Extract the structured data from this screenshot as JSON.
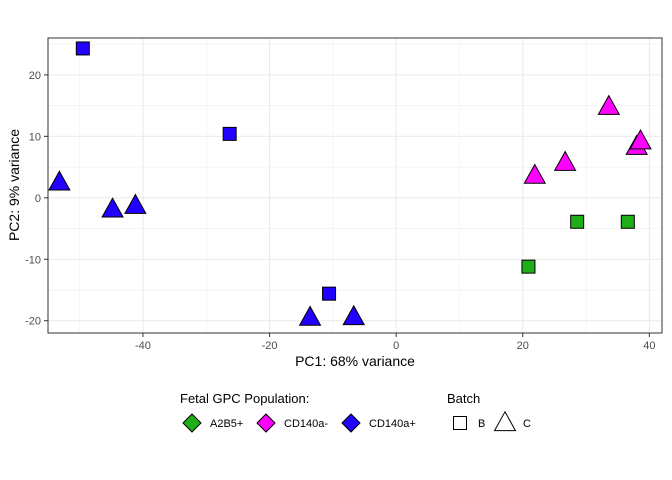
{
  "chart_data": {
    "type": "scatter",
    "xlabel": "PC1: 68% variance",
    "ylabel": "PC2: 9% variance",
    "xlim": [
      -55,
      42
    ],
    "ylim": [
      -22,
      26
    ],
    "xticks": [
      -40,
      -20,
      0,
      20,
      40
    ],
    "yticks": [
      -20,
      -10,
      0,
      10,
      20
    ],
    "grid": true,
    "legend_placement": "bottom",
    "colors": {
      "A2B5+": "#1fae17",
      "CD140a-": "#ff00ff",
      "CD140a+": "#2200ff",
      "outline": "#000000",
      "panel_border": "#333333",
      "grid": "#ebebeb"
    },
    "legend": {
      "population_title": "Fetal GPC Population:",
      "population_entries": [
        "A2B5+",
        "CD140a-",
        "CD140a+"
      ],
      "batch_title": "Batch",
      "batch_entries": [
        {
          "label": "B",
          "shape": "square"
        },
        {
          "label": "C",
          "shape": "triangle"
        }
      ]
    },
    "points": [
      {
        "x": -49.5,
        "y": 24.3,
        "population": "CD140a+",
        "batch": "B"
      },
      {
        "x": -26.3,
        "y": 10.4,
        "population": "CD140a+",
        "batch": "B"
      },
      {
        "x": -10.6,
        "y": -15.6,
        "population": "CD140a+",
        "batch": "B"
      },
      {
        "x": -53.2,
        "y": 2.5,
        "population": "CD140a+",
        "batch": "C"
      },
      {
        "x": -44.8,
        "y": -1.9,
        "population": "CD140a+",
        "batch": "C"
      },
      {
        "x": -41.2,
        "y": -1.3,
        "population": "CD140a+",
        "batch": "C"
      },
      {
        "x": -13.6,
        "y": -19.5,
        "population": "CD140a+",
        "batch": "C"
      },
      {
        "x": -6.7,
        "y": -19.4,
        "population": "CD140a+",
        "batch": "C"
      },
      {
        "x": 21.9,
        "y": 3.6,
        "population": "CD140a-",
        "batch": "C"
      },
      {
        "x": 26.7,
        "y": 5.7,
        "population": "CD140a-",
        "batch": "C"
      },
      {
        "x": 33.6,
        "y": 14.8,
        "population": "CD140a-",
        "batch": "C"
      },
      {
        "x": 38.0,
        "y": 8.3,
        "population": "CD140a-",
        "batch": "C"
      },
      {
        "x": 38.6,
        "y": 9.2,
        "population": "CD140a-",
        "batch": "C"
      },
      {
        "x": 20.9,
        "y": -11.2,
        "population": "A2B5+",
        "batch": "B"
      },
      {
        "x": 28.6,
        "y": -3.9,
        "population": "A2B5+",
        "batch": "B"
      },
      {
        "x": 36.6,
        "y": -3.9,
        "population": "A2B5+",
        "batch": "B"
      }
    ]
  }
}
